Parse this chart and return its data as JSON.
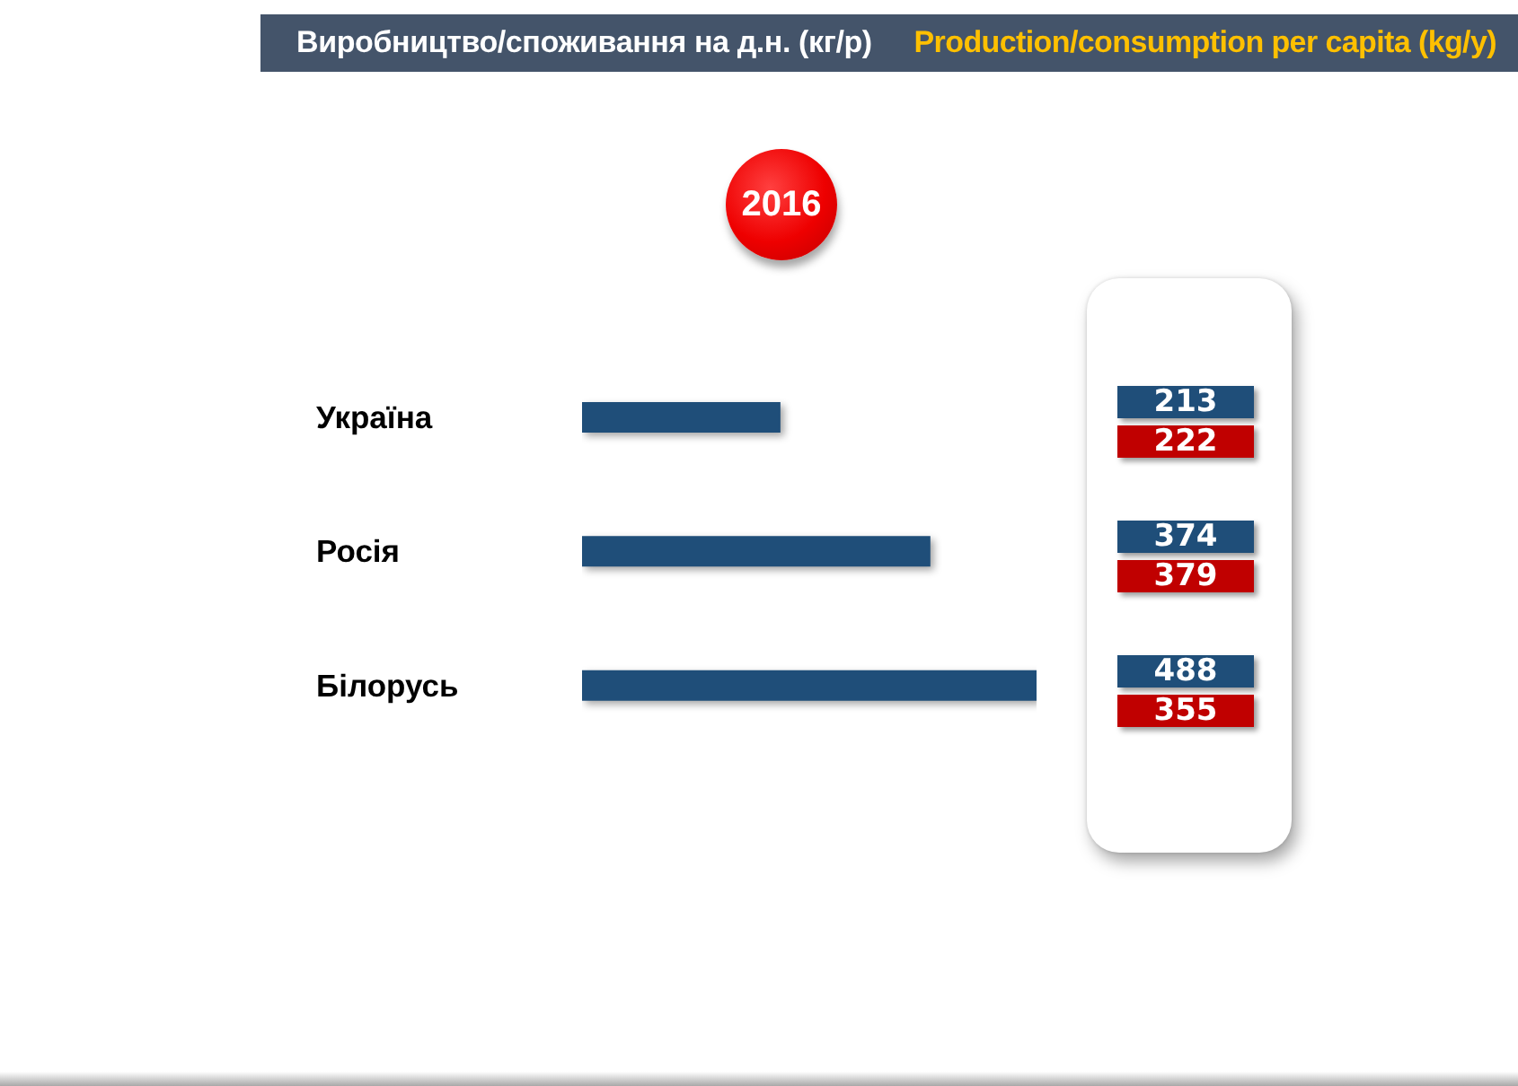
{
  "chart_data": [
    {
      "type": "bar",
      "orientation": "horizontal",
      "title": "Виробництво/споживання на д.н. (кг/р)",
      "subtitle": "Production/consumption per capita (kg/y)",
      "annotations": [
        "2016"
      ],
      "categories": [
        "Україна",
        "Росія",
        "Білорусь"
      ],
      "series": [
        {
          "color": "#1f4e79",
          "values": [
            213,
            374,
            488
          ]
        }
      ],
      "data_labels": true,
      "tick_labels": "y"
    },
    {
      "type": "other",
      "series": [
        {
          "color": "#c00000",
          "values": [
            222,
            379,
            355
          ]
        }
      ],
      "data_labels": true
    }
  ]
}
